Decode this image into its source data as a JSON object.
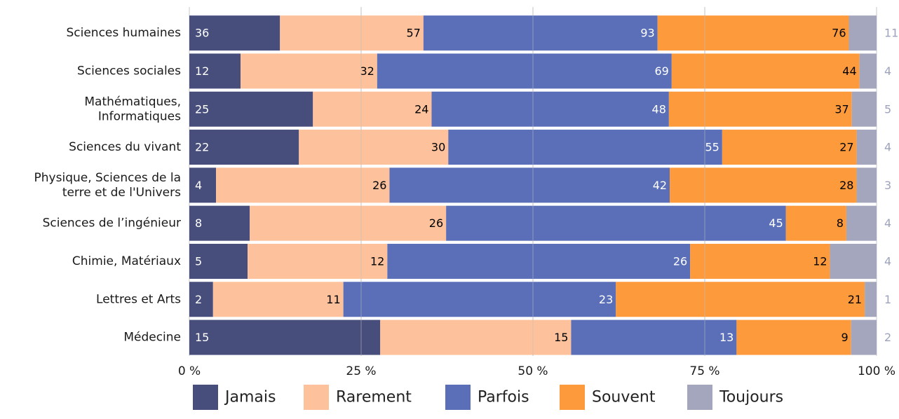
{
  "chart_data": {
    "type": "bar",
    "orientation": "horizontal",
    "stacked": "percent",
    "categories": [
      "Sciences humaines",
      "Sciences sociales",
      "Mathématiques, Informatiques",
      "Sciences du vivant",
      "Physique, Sciences de la terre et de l'Univers",
      "Sciences de l’ingénieur",
      "Chimie, Matériaux",
      "Lettres et Arts",
      "Médecine"
    ],
    "category_lines": [
      [
        "Sciences humaines"
      ],
      [
        "Sciences sociales"
      ],
      [
        "Mathématiques,",
        "Informatiques"
      ],
      [
        "Sciences du vivant"
      ],
      [
        "Physique, Sciences de la",
        "terre et de l'Univers"
      ],
      [
        "Sciences de l’ingénieur"
      ],
      [
        "Chimie, Matériaux"
      ],
      [
        "Lettres et Arts"
      ],
      [
        "Médecine"
      ]
    ],
    "series": [
      {
        "name": "Jamais",
        "color": "#484e7c",
        "label_color": "#ffffff",
        "label_anchor": "start",
        "values": [
          36,
          12,
          25,
          22,
          4,
          8,
          5,
          2,
          15
        ]
      },
      {
        "name": "Rarement",
        "color": "#fdc19c",
        "label_color": "#000000",
        "label_anchor": "end",
        "values": [
          57,
          32,
          24,
          30,
          26,
          26,
          12,
          11,
          15
        ]
      },
      {
        "name": "Parfois",
        "color": "#5a6fb8",
        "label_color": "#ffffff",
        "label_anchor": "end",
        "values": [
          93,
          69,
          48,
          55,
          42,
          45,
          26,
          23,
          13
        ]
      },
      {
        "name": "Souvent",
        "color": "#fd9a3c",
        "label_color": "#000000",
        "label_anchor": "end",
        "values": [
          76,
          44,
          37,
          27,
          28,
          8,
          12,
          21,
          9
        ]
      },
      {
        "name": "Toujours",
        "color": "#a4a6be",
        "label_color": "#9ea3bd",
        "label_anchor": "outside",
        "values": [
          11,
          4,
          5,
          4,
          3,
          4,
          4,
          1,
          2
        ]
      }
    ],
    "xticks": [
      "0 %",
      "25 %",
      "50 %",
      "75 %",
      "100 %"
    ],
    "xlim": [
      0,
      100
    ],
    "grid": true,
    "legend_position": "bottom"
  }
}
